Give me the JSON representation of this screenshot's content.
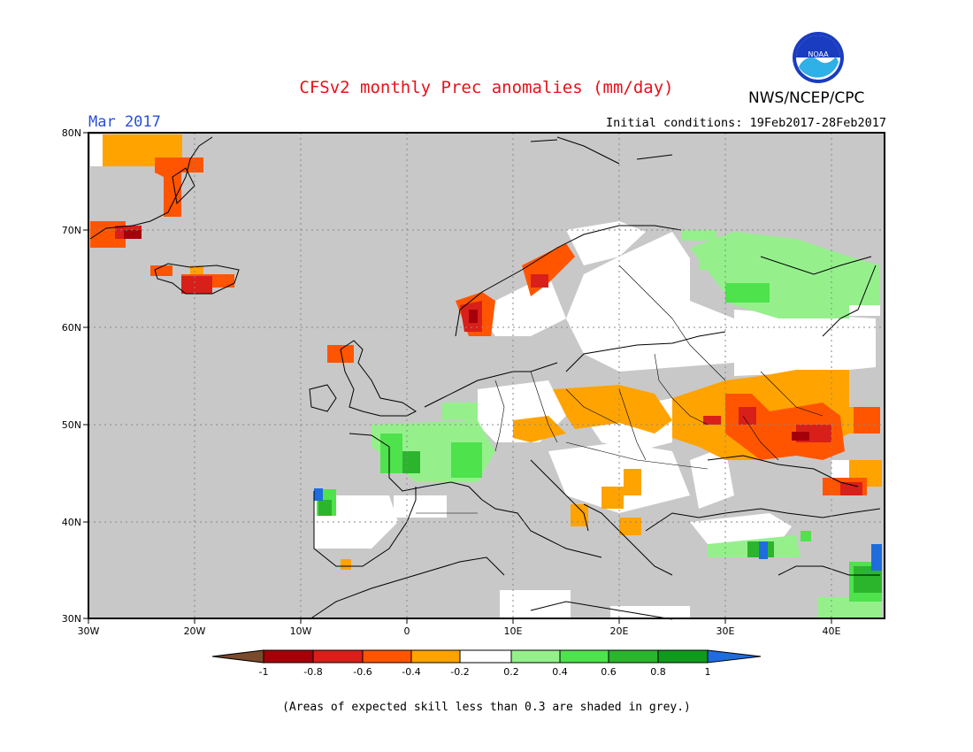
{
  "header": {
    "title": "CFSv2 monthly Prec anomalies (mm/day)",
    "agency": "NWS/NCEP/CPC",
    "logo_text": "NOAA",
    "month": "Mar 2017",
    "initial_conditions": "Initial conditions: 19Feb2017-28Feb2017"
  },
  "map": {
    "projection": "lat-lon",
    "lon_range": [
      -30,
      45
    ],
    "lat_range": [
      30,
      80
    ],
    "gridlines": "dotted",
    "background": "#c8c8c8",
    "lat_labels": [
      "80N",
      "70N",
      "60N",
      "50N",
      "40N",
      "30N"
    ],
    "lon_labels": [
      "30W",
      "20W",
      "10W",
      "0",
      "10E",
      "20E",
      "30E",
      "40E"
    ]
  },
  "colorbar": {
    "labels": [
      "-1",
      "-0.8",
      "-0.6",
      "-0.4",
      "-0.2",
      "0.2",
      "0.4",
      "0.6",
      "0.8",
      "1"
    ],
    "colors": [
      "#7a4a2c",
      "#a5000a",
      "#d81f1a",
      "#ff5500",
      "#ffa300",
      "#ffffff",
      "#95f08c",
      "#4ee24c",
      "#2bb52c",
      "#0f9a1c",
      "#1f6cdd"
    ]
  },
  "footnote": "(Areas of expected skill less than 0.3 are shaded in grey.)"
}
